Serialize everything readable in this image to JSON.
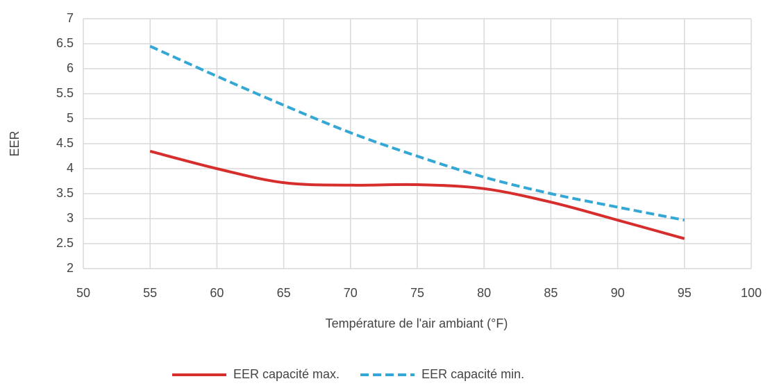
{
  "chart_data": {
    "type": "line",
    "x_label": "Température de l'air ambiant (°F)",
    "y_label": "EER",
    "x": [
      55,
      60,
      65,
      70,
      75,
      80,
      85,
      90,
      95
    ],
    "series": [
      {
        "name": "EER capacité max.",
        "color": "#d62d2d",
        "dash": false,
        "values": [
          4.35,
          4.0,
          3.72,
          3.67,
          3.68,
          3.6,
          3.33,
          2.97,
          2.6
        ]
      },
      {
        "name": "EER capacité min.",
        "color": "#35a7d4",
        "dash": true,
        "values": [
          6.45,
          5.85,
          5.27,
          4.72,
          4.25,
          3.83,
          3.5,
          3.23,
          2.97
        ]
      }
    ],
    "xlim": [
      50,
      100
    ],
    "xticks": [
      50,
      55,
      60,
      65,
      70,
      75,
      80,
      85,
      90,
      95,
      100
    ],
    "ylim": [
      2,
      7
    ],
    "yticks": [
      2,
      2.5,
      3,
      3.5,
      4,
      4.5,
      5,
      5.5,
      6,
      6.5,
      7
    ],
    "grid": true,
    "legend": "bottom"
  }
}
